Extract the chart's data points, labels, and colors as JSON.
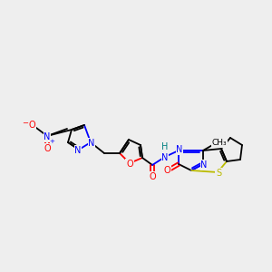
{
  "background_color": "#eeeeee",
  "figsize": [
    3.0,
    3.0
  ],
  "dpi": 100,
  "colors": {
    "C": "#000000",
    "N": "#0000ff",
    "O": "#ff0000",
    "S": "#bbbb00",
    "H": "#008080"
  },
  "lw": 1.3,
  "fs": 7.0
}
